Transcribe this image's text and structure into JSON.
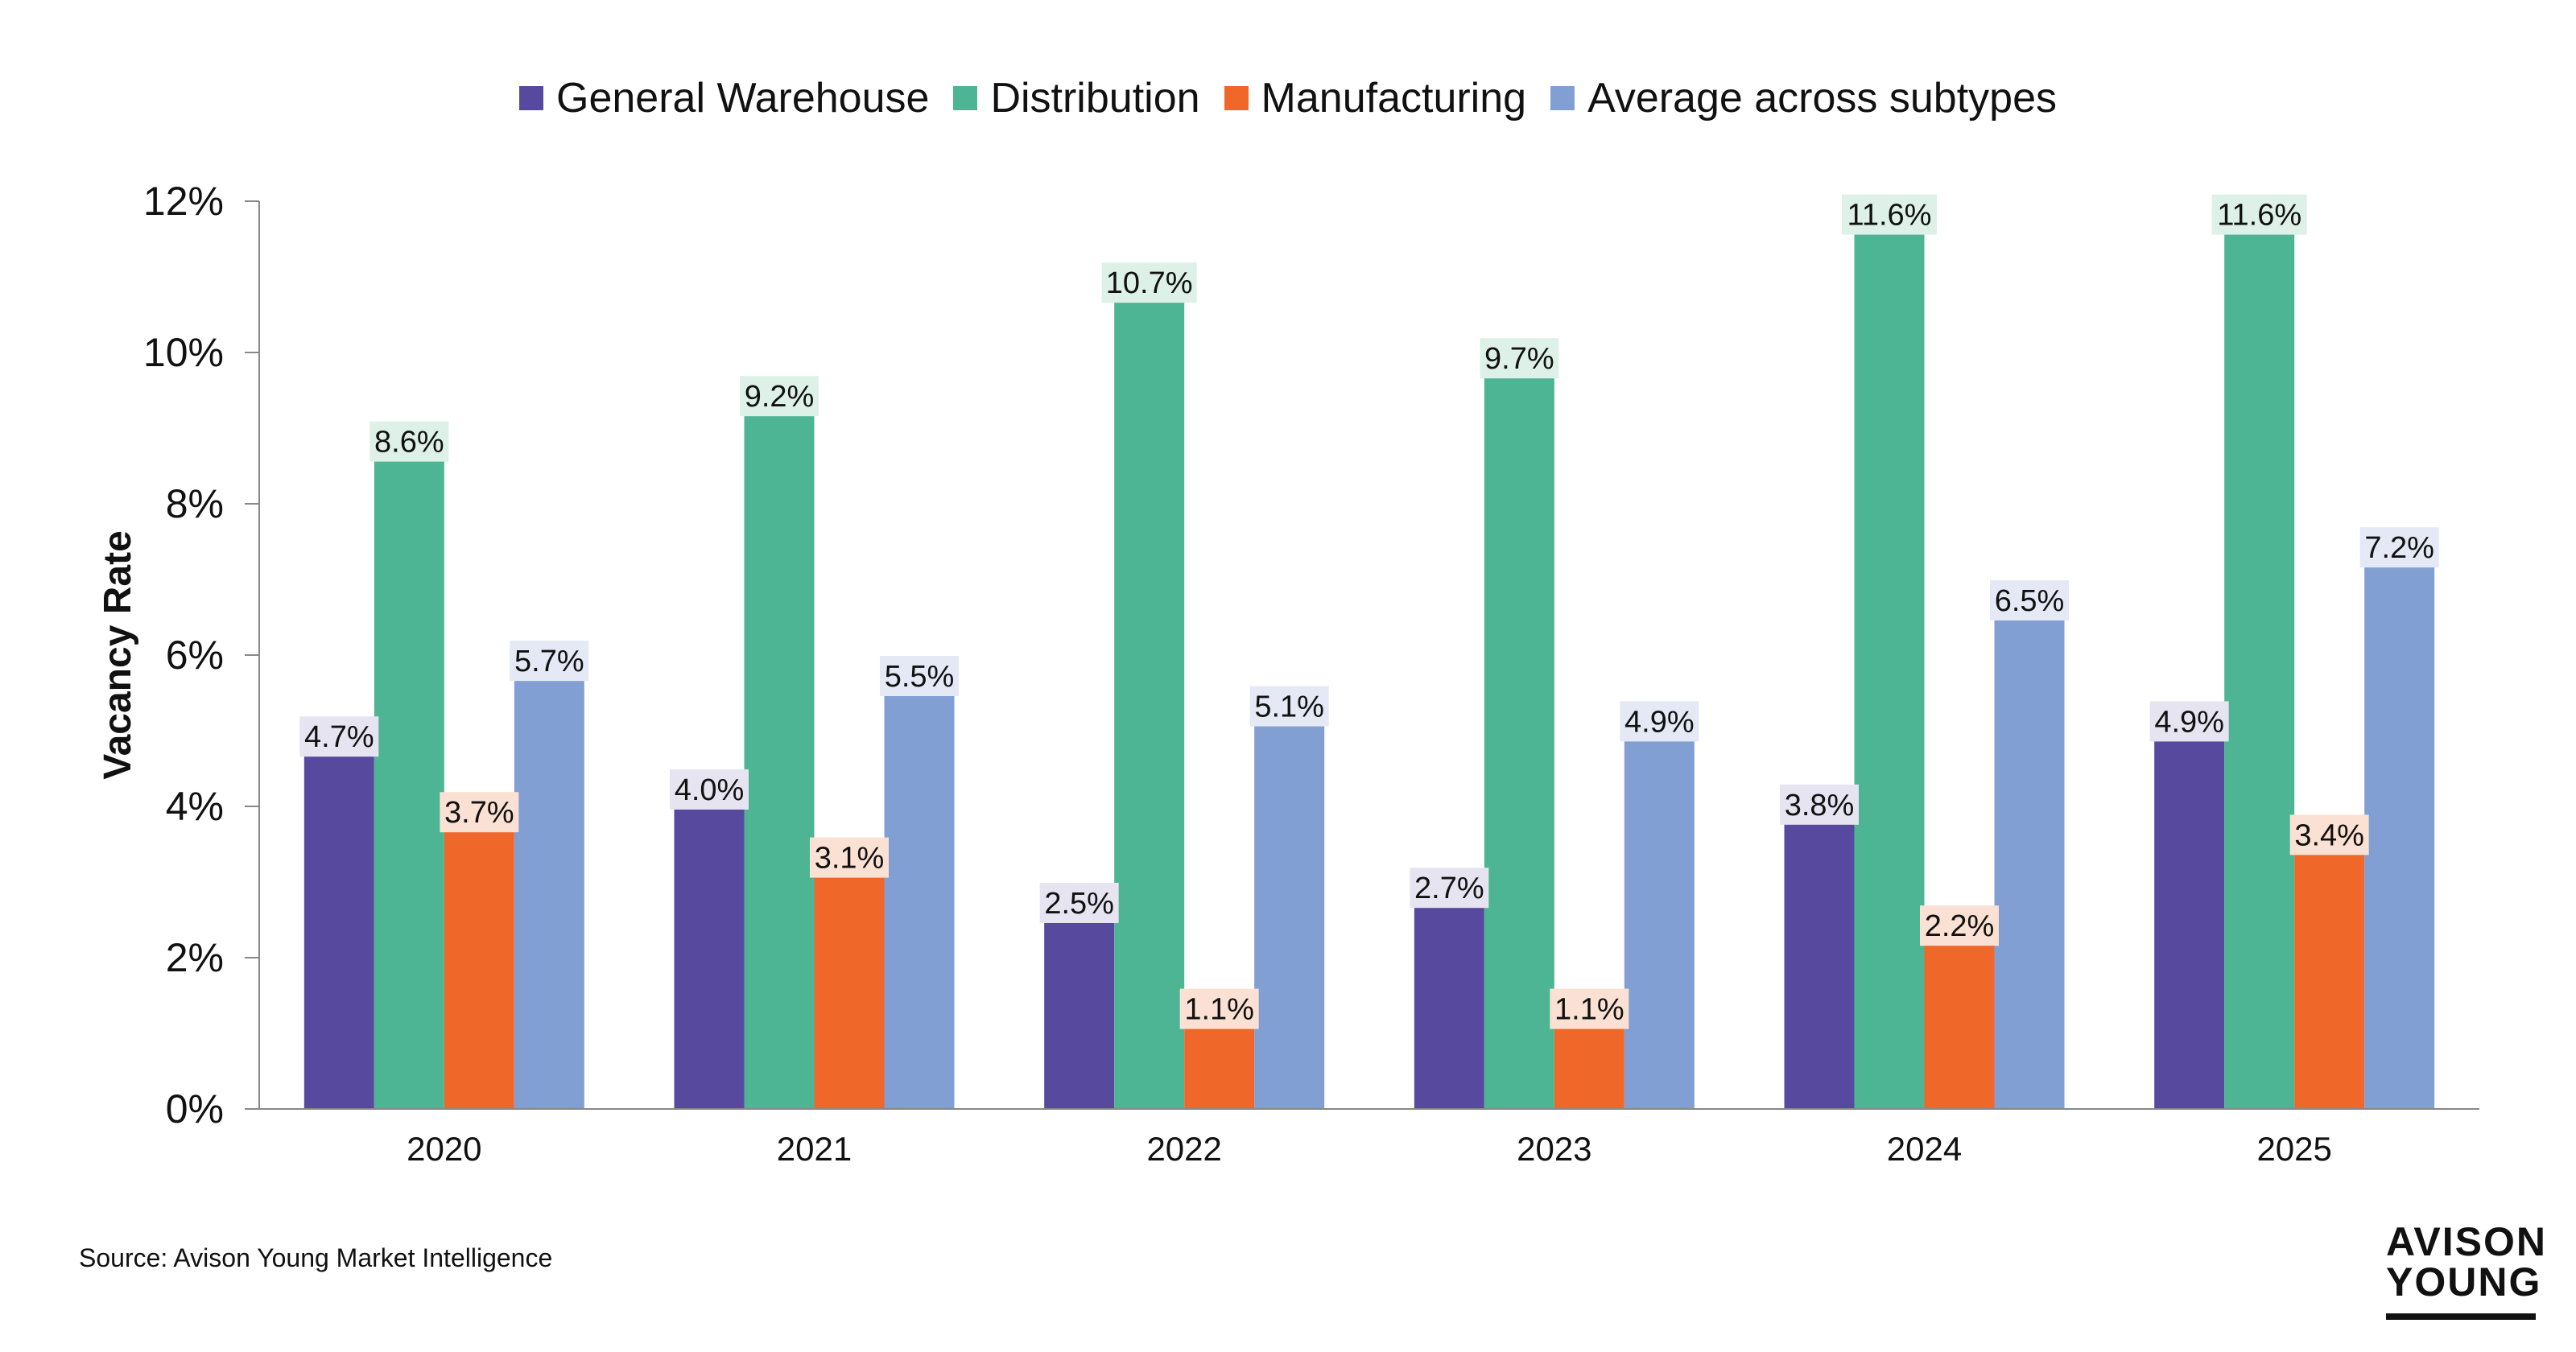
{
  "chart_data": {
    "type": "bar",
    "categories": [
      "2020",
      "2021",
      "2022",
      "2023",
      "2024",
      "2025"
    ],
    "series": [
      {
        "name": "General Warehouse",
        "color": "#574a9e",
        "label_bg": "#e6e4f0",
        "values": [
          4.7,
          4.0,
          2.5,
          2.7,
          3.8,
          4.9
        ],
        "labels": [
          "4.7%",
          "4.0%",
          "2.5%",
          "2.7%",
          "3.8%",
          "4.9%"
        ]
      },
      {
        "name": "Distribution",
        "color": "#4db594",
        "label_bg": "#ddf1e9",
        "values": [
          8.6,
          9.2,
          10.7,
          9.7,
          11.6,
          11.6
        ],
        "labels": [
          "8.6%",
          "9.2%",
          "10.7%",
          "9.7%",
          "11.6%",
          "11.6%"
        ]
      },
      {
        "name": "Manufacturing",
        "color": "#f0672a",
        "label_bg": "#fbe1d3",
        "values": [
          3.7,
          3.1,
          1.1,
          1.1,
          2.2,
          3.4
        ],
        "labels": [
          "3.7%",
          "3.1%",
          "1.1%",
          "1.1%",
          "2.2%",
          "3.4%"
        ]
      },
      {
        "name": "Average across subtypes",
        "color": "#829fd3",
        "label_bg": "#e4e9f5",
        "values": [
          5.7,
          5.5,
          5.1,
          4.9,
          6.5,
          7.2
        ],
        "labels": [
          "5.7%",
          "5.5%",
          "5.1%",
          "4.9%",
          "6.5%",
          "7.2%"
        ]
      }
    ],
    "ylabel": "Vacancy Rate",
    "xlabel": "",
    "ylim": [
      0,
      12
    ],
    "yticks": [
      "0%",
      "2%",
      "4%",
      "6%",
      "8%",
      "10%",
      "12%"
    ],
    "grid": false,
    "legend_position": "top"
  },
  "source": "Source: Avison Young Market Intelligence",
  "logo": {
    "line1": "AVISON",
    "line2": "YOUNG"
  }
}
